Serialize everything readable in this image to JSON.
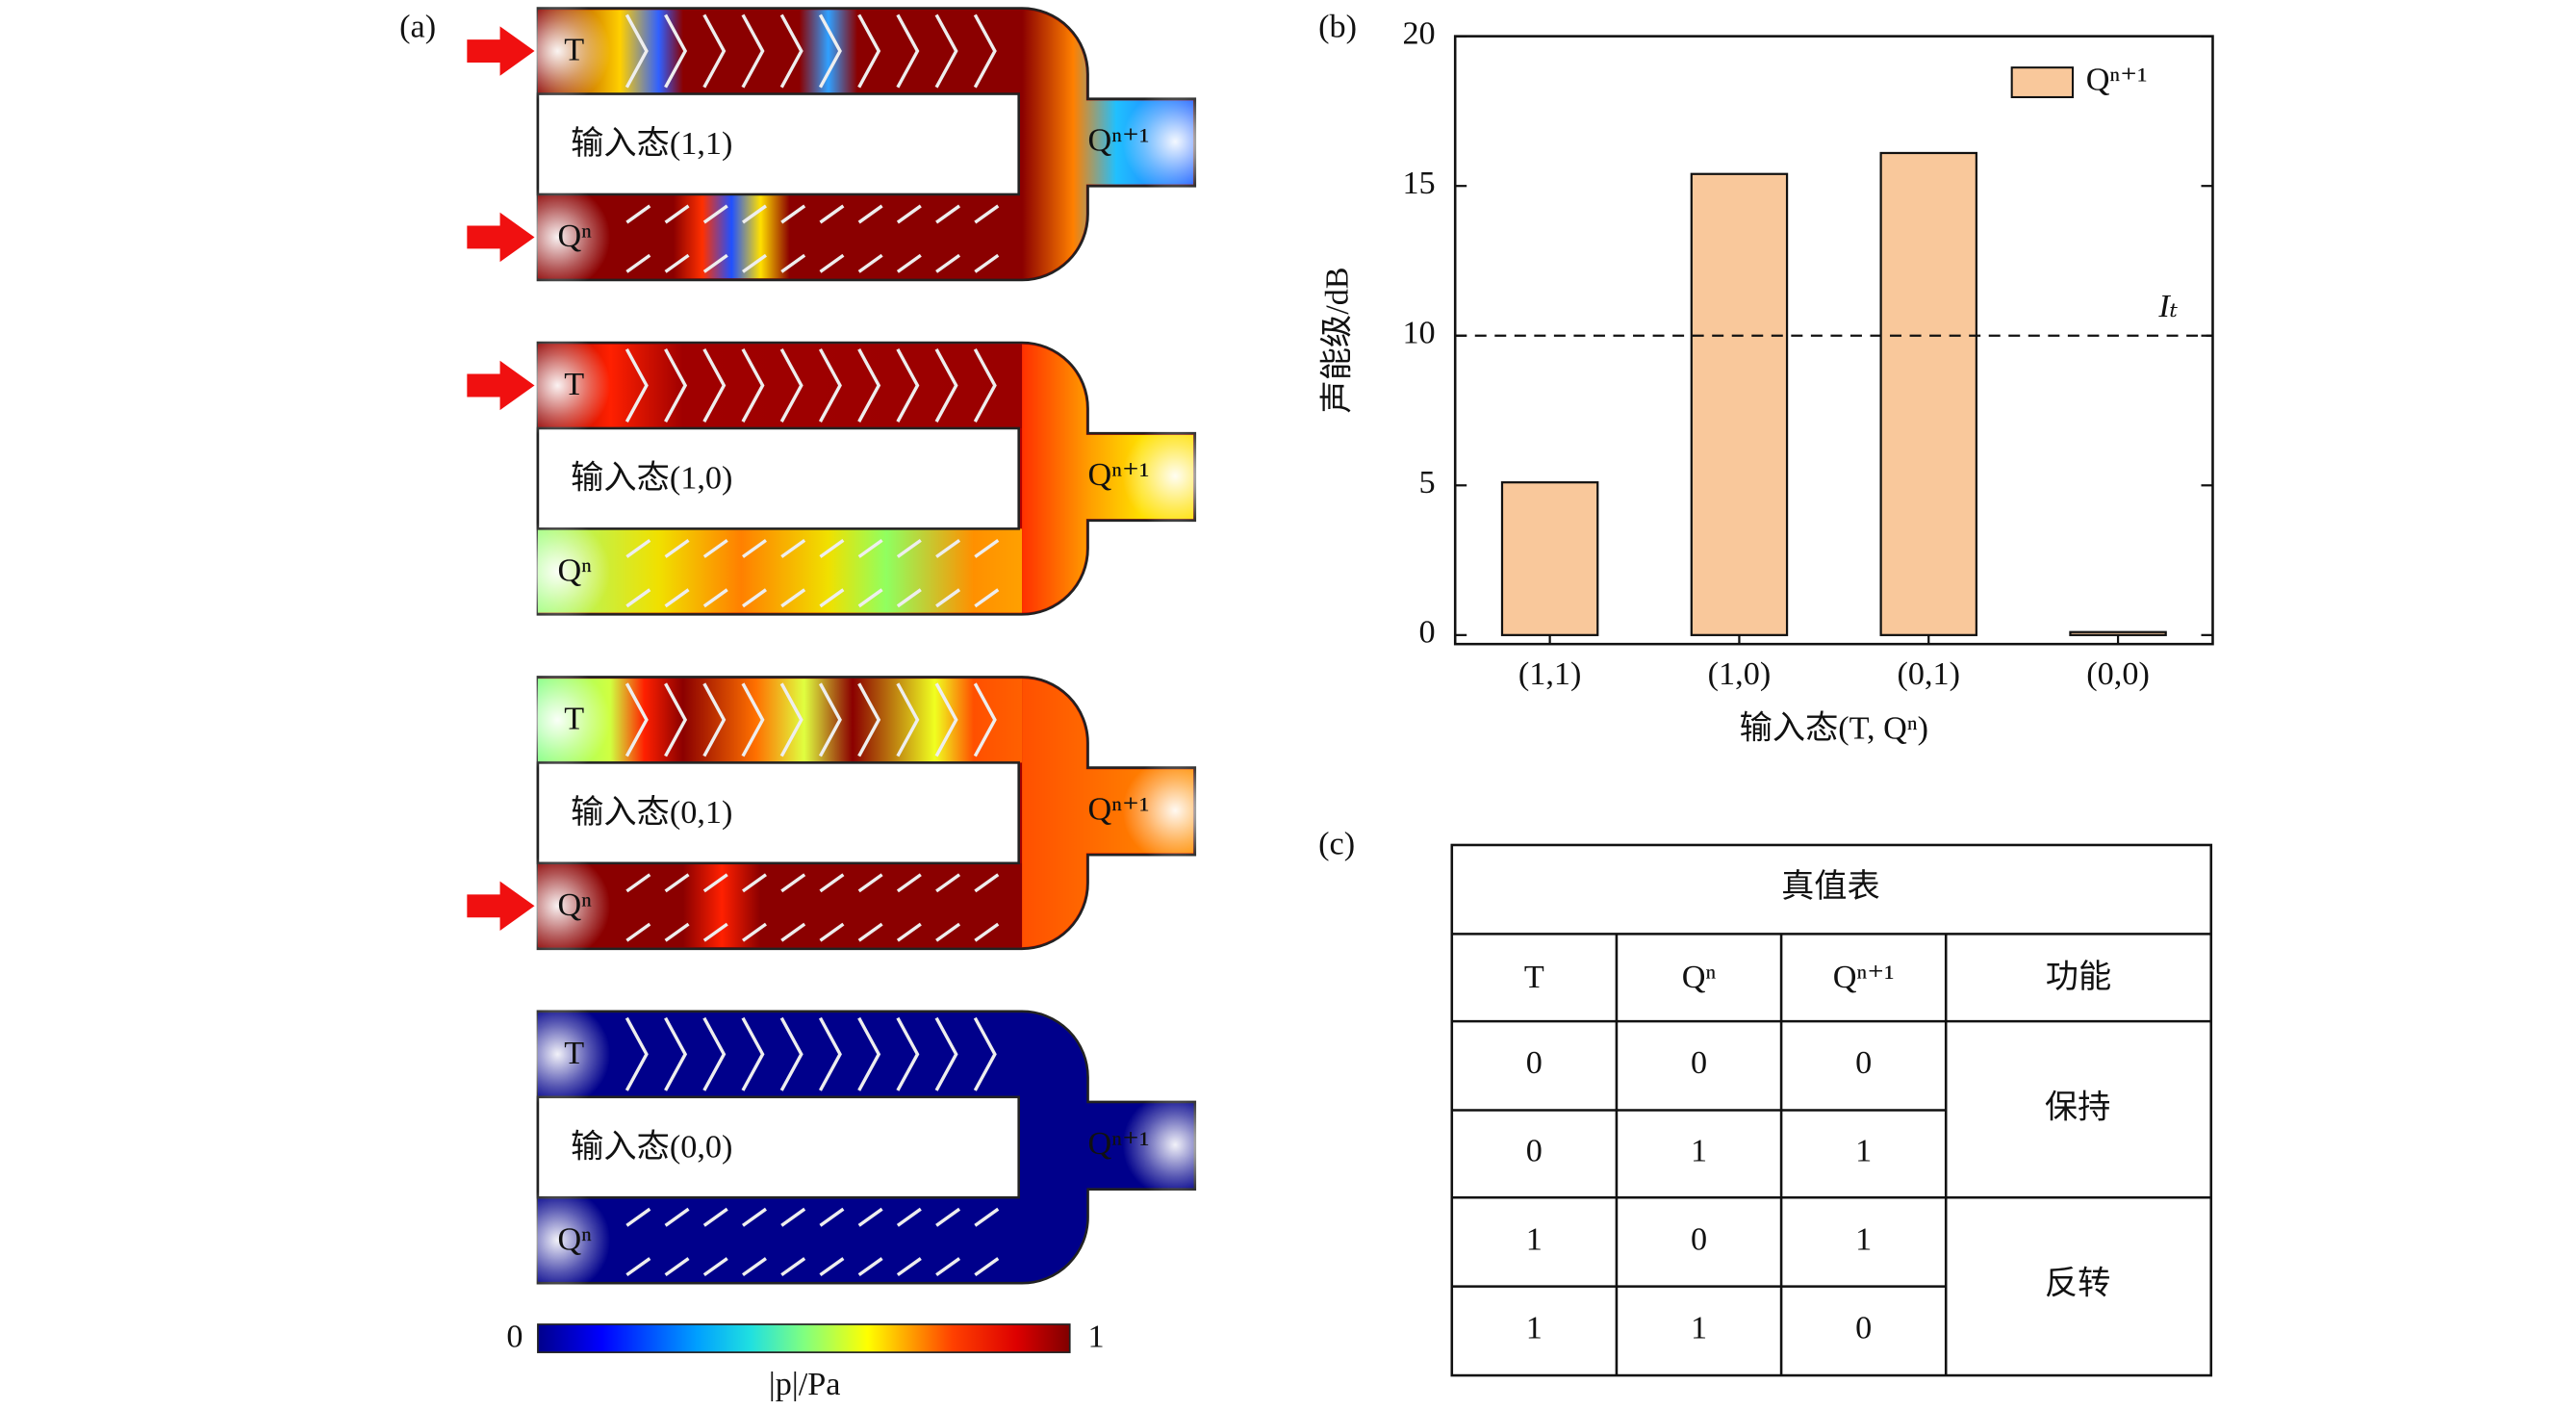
{
  "panel_labels": [
    "(a)",
    "(b)",
    "(c)"
  ],
  "diagrams": [
    {
      "state": "输入态(1,1)",
      "port_top": "T",
      "port_bottom": "Qⁿ",
      "port_out": "Qⁿ⁺¹"
    },
    {
      "state": "输入态(1,0)",
      "port_top": "T",
      "port_bottom": "Qⁿ",
      "port_out": "Qⁿ⁺¹"
    },
    {
      "state": "输入态(0,1)",
      "port_top": "T",
      "port_bottom": "Qⁿ",
      "port_out": "Qⁿ⁺¹"
    },
    {
      "state": "输入态(0,0)",
      "port_top": "T",
      "port_bottom": "Qⁿ",
      "port_out": "Qⁿ⁺¹"
    }
  ],
  "colorbar": {
    "min": 0,
    "max": 1,
    "label": "|p|/Pa"
  },
  "chart_data": {
    "type": "bar",
    "x_label": "输入态(T, Qⁿ)",
    "y_label": "声能级/dB",
    "categories": [
      "(1,1)",
      "(1,0)",
      "(0,1)",
      "(0,0)"
    ],
    "series": [
      {
        "name": "Qⁿ⁺¹",
        "color": "#f9c89b",
        "values": [
          5.1,
          15.4,
          16.1,
          0.1
        ]
      }
    ],
    "ylim": [
      -0.3,
      20
    ],
    "yticks": [
      0,
      5,
      10,
      15,
      20
    ],
    "threshold": {
      "value": 10,
      "label": "Iₜ"
    },
    "legend": "upper right"
  },
  "table": {
    "title": "真值表",
    "header": [
      "T",
      "Qⁿ",
      "Qⁿ⁺¹",
      "功能"
    ],
    "rows": [
      [
        "0",
        "0",
        "0"
      ],
      [
        "0",
        "1",
        "1"
      ],
      [
        "1",
        "0",
        "1"
      ],
      [
        "1",
        "1",
        "0"
      ]
    ],
    "functions": [
      "保持",
      "反转"
    ]
  }
}
